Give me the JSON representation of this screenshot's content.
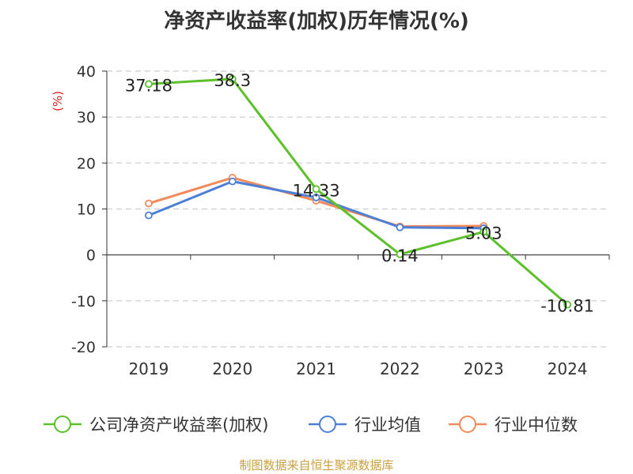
{
  "chart_data": {
    "type": "line",
    "title": "净资产收益率(加权)历年情况(%)",
    "ylabel": "(%)",
    "categories": [
      "2019",
      "2020",
      "2021",
      "2022",
      "2023",
      "2024"
    ],
    "ylim": [
      -20,
      40
    ],
    "yticks": [
      "40",
      "30",
      "20",
      "10",
      "0",
      "-10",
      "-20"
    ],
    "grid": true,
    "legend_position": "bottom",
    "series": [
      {
        "name": "公司净资产收益率(加权)",
        "color": "#5cc02a",
        "values": [
          37.18,
          38.3,
          14.33,
          0.14,
          5.03,
          -10.81
        ],
        "labels": [
          "37.18",
          "38.3",
          "14.33",
          "0.14",
          "5.03",
          "-10.81"
        ]
      },
      {
        "name": "行业均值",
        "color": "#4e7fd6",
        "values": [
          8.6,
          16.0,
          12.5,
          6.0,
          5.8,
          null
        ]
      },
      {
        "name": "行业中位数",
        "color": "#f28a5a",
        "values": [
          11.2,
          16.8,
          11.8,
          6.2,
          6.3,
          null
        ]
      }
    ]
  },
  "source": "制图数据来自恒生聚源数据库"
}
